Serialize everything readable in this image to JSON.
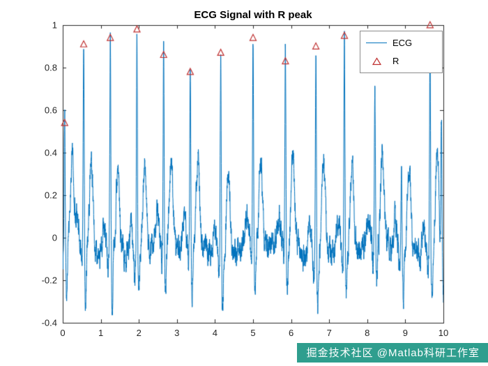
{
  "chart_data": {
    "type": "line",
    "title": "ECG Signal with R peak",
    "xlabel": "",
    "ylabel": "",
    "xlim": [
      0,
      10
    ],
    "ylim": [
      -0.4,
      1
    ],
    "x_ticks": [
      0,
      1,
      2,
      3,
      4,
      5,
      6,
      7,
      8,
      9,
      10
    ],
    "y_ticks": [
      -0.4,
      -0.2,
      0,
      0.2,
      0.4,
      0.6,
      0.8,
      1
    ],
    "grid": false,
    "line_color": "#0072BD",
    "marker_color": "#bf3030",
    "axis_color": "#262626",
    "legend": {
      "position": "northeast",
      "entries": [
        {
          "label": "ECG",
          "type": "line"
        },
        {
          "label": "R",
          "type": "open-triangle-marker"
        }
      ]
    },
    "series": [
      {
        "name": "ECG",
        "type": "line",
        "note": "continuous noisy ECG trace, baseline ~ -0.1 to 0, S-dips to ~ -0.28, T-wave bumps to ~ 0.4, R spikes listed in r_peaks and unmarked_beats"
      },
      {
        "name": "R",
        "type": "scatter",
        "marker": "open-triangle-up"
      }
    ],
    "r_peaks": [
      {
        "x": 0.05,
        "y": 0.54
      },
      {
        "x": 0.55,
        "y": 0.91
      },
      {
        "x": 1.25,
        "y": 0.94
      },
      {
        "x": 1.95,
        "y": 0.98
      },
      {
        "x": 2.65,
        "y": 0.86
      },
      {
        "x": 3.35,
        "y": 0.78
      },
      {
        "x": 4.15,
        "y": 0.87
      },
      {
        "x": 5.0,
        "y": 0.94
      },
      {
        "x": 5.85,
        "y": 0.83
      },
      {
        "x": 6.65,
        "y": 0.9
      },
      {
        "x": 7.4,
        "y": 0.95
      },
      {
        "x": 9.65,
        "y": 1.0
      }
    ],
    "unmarked_beats": [
      {
        "x": 8.2,
        "y": 0.62
      },
      {
        "x": 8.9,
        "y": 0.35
      },
      {
        "x": 9.95,
        "y": 0.6
      }
    ]
  },
  "watermark": {
    "text": "掘金技术社区 @Matlab科研工作室",
    "background": "#2f9e8e",
    "text_color": "#ffffff"
  }
}
